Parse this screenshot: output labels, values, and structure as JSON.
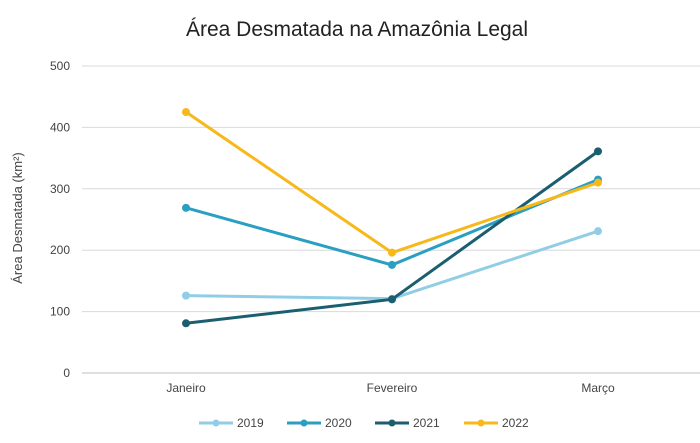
{
  "chart_data": {
    "type": "line",
    "title": "Área Desmatada na Amazônia Legal",
    "xlabel": "",
    "ylabel": "Área Desmatada (km²)",
    "categories": [
      "Janeiro",
      "Fevereiro",
      "Março"
    ],
    "ylim": [
      0,
      500
    ],
    "yticks": [
      0,
      100,
      200,
      300,
      400,
      500
    ],
    "grid": true,
    "legend_position": "bottom",
    "series": [
      {
        "name": "2019",
        "color": "#92cde6",
        "values": [
          126,
          121,
          231
        ]
      },
      {
        "name": "2020",
        "color": "#2a9fc1",
        "values": [
          269,
          176,
          315
        ]
      },
      {
        "name": "2021",
        "color": "#1b5e70",
        "values": [
          81,
          120,
          361
        ]
      },
      {
        "name": "2022",
        "color": "#f7b81a",
        "values": [
          425,
          196,
          310
        ]
      }
    ]
  }
}
